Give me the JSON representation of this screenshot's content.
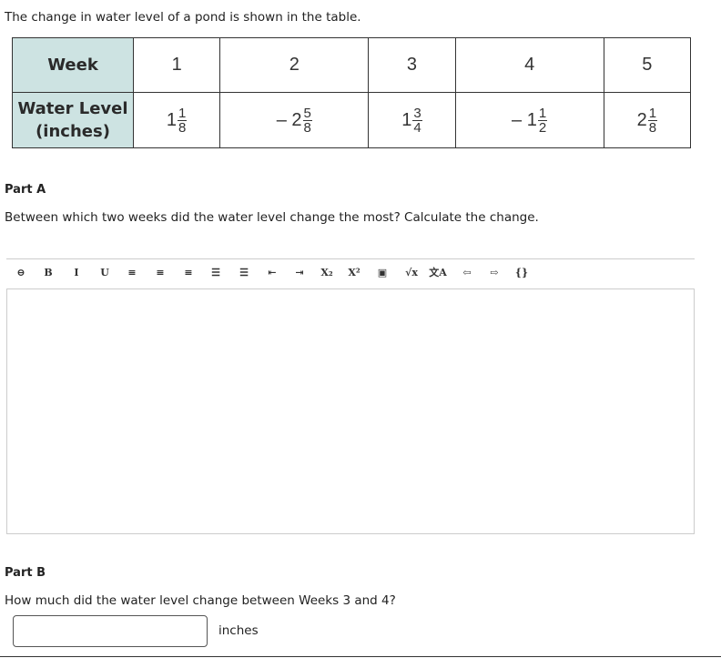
{
  "intro": "The change in water level of a pond is shown in the table.",
  "table": {
    "row1_header": "Week",
    "row2_header_line1": "Water Level",
    "row2_header_line2": "(inches)",
    "weeks": [
      "1",
      "2",
      "3",
      "4",
      "5"
    ],
    "levels": [
      {
        "sign": "",
        "whole": "1",
        "num": "1",
        "den": "8"
      },
      {
        "sign": "– ",
        "whole": "2",
        "num": "5",
        "den": "8"
      },
      {
        "sign": "",
        "whole": "1",
        "num": "3",
        "den": "4"
      },
      {
        "sign": "– ",
        "whole": "1",
        "num": "1",
        "den": "2"
      },
      {
        "sign": "",
        "whole": "2",
        "num": "1",
        "den": "8"
      }
    ]
  },
  "partA": {
    "label": "Part A",
    "question": "Between which two weeks did the water level change the most? Calculate the change.",
    "answer": ""
  },
  "toolbar": [
    {
      "icon": "link-icon",
      "glyph": "⊖"
    },
    {
      "icon": "bold-icon",
      "glyph": "B"
    },
    {
      "icon": "italic-icon",
      "glyph": "I"
    },
    {
      "icon": "underline-icon",
      "glyph": "U"
    },
    {
      "icon": "align-left-icon",
      "glyph": "≡"
    },
    {
      "icon": "align-center-icon",
      "glyph": "≡"
    },
    {
      "icon": "align-right-icon",
      "glyph": "≡"
    },
    {
      "icon": "bulleted-list-icon",
      "glyph": "☰"
    },
    {
      "icon": "numbered-list-icon",
      "glyph": "☰"
    },
    {
      "icon": "outdent-icon",
      "glyph": "⇤"
    },
    {
      "icon": "indent-icon",
      "glyph": "⇥"
    },
    {
      "icon": "subscript-icon",
      "glyph": "X₂"
    },
    {
      "icon": "superscript-icon",
      "glyph": "X²"
    },
    {
      "icon": "image-icon",
      "glyph": "▣"
    },
    {
      "icon": "square-root-icon",
      "glyph": "√x"
    },
    {
      "icon": "translate-icon",
      "glyph": "文A"
    },
    {
      "icon": "undo-icon",
      "glyph": "⇦"
    },
    {
      "icon": "redo-icon",
      "glyph": "⇨"
    },
    {
      "icon": "code-braces-icon",
      "glyph": "{}"
    }
  ],
  "partB": {
    "label": "Part B",
    "question": "How much did the water level change between Weeks 3 and 4?",
    "answer": "",
    "unit": "inches"
  }
}
